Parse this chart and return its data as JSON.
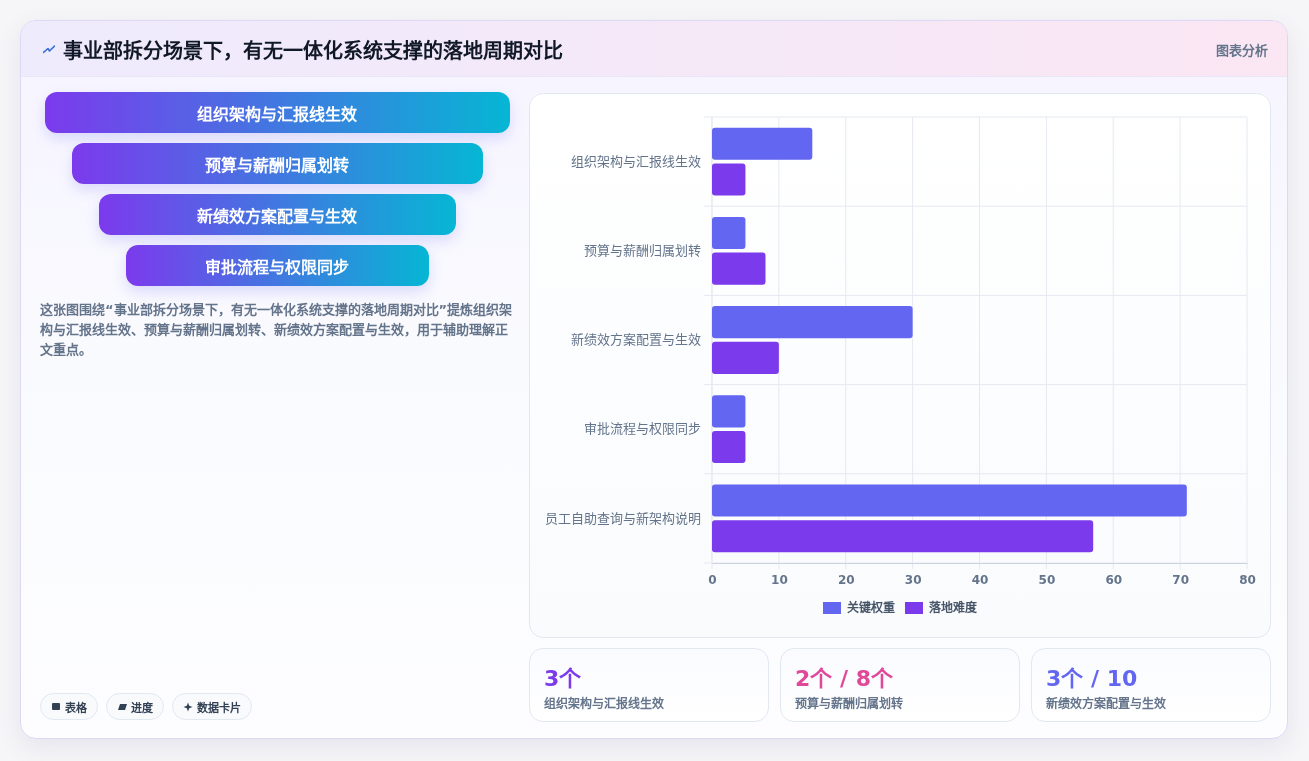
{
  "chart_data": [
    {
      "type": "other",
      "title": "事业部拆分场景下，有无一体化系统支撑的落地周期对比",
      "categories": [
        "组织架构与汇报线生效",
        "预算与薪酬归属划转",
        "新绩效方案配置与生效",
        "审批流程与权限同步"
      ],
      "annotations": [
        "这张图围绕“事业部拆分场景下，有无一体化系统支撑的落地周期对比”提炼组织架构与汇报线生效、预算与薪酬归属划转、新绩效方案配置与生效，用于辅助理解正文重点。",
        "表格",
        "进度",
        "数据卡片"
      ]
    },
    {
      "type": "bar",
      "orientation": "horizontal",
      "annotations": [
        "图表分析"
      ],
      "categories": [
        "组织架构与汇报线生效",
        "预算与薪酬归属划转",
        "新绩效方案配置与生效",
        "审批流程与权限同步",
        "员工自助查询与新架构说明"
      ],
      "series": [
        {
          "name": "关键权重",
          "color": "#6366f1",
          "values": [
            15,
            5,
            30,
            5,
            71
          ]
        },
        {
          "name": "落地难度",
          "color": "#7c3aed",
          "values": [
            5,
            8,
            10,
            5,
            57
          ]
        }
      ],
      "xlim": [
        0,
        80
      ],
      "xticks": [
        0,
        10,
        20,
        30,
        40,
        50,
        60,
        70,
        80
      ],
      "grid": true,
      "legend": "bottom"
    },
    {
      "type": "other",
      "categories": [
        "组织架构与汇报线生效",
        "预算与薪酬归属划转",
        "新绩效方案配置与生效"
      ],
      "value_labels": [
        "3个",
        "2个 / 8个",
        "3个 / 10"
      ]
    }
  ]
}
